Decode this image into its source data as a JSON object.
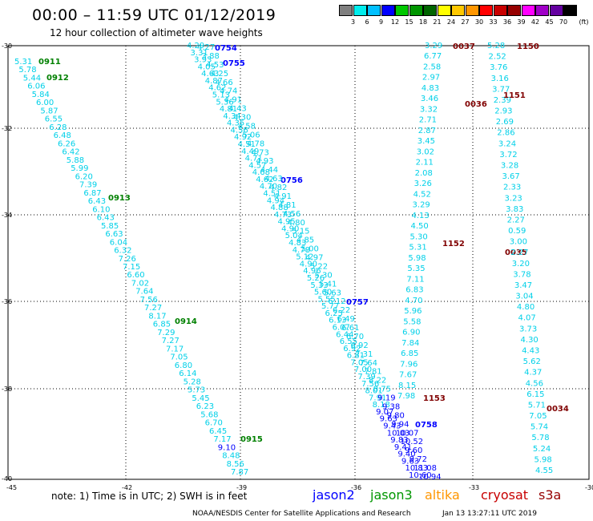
{
  "header": {
    "title": "00:00 – 11:59 UTC 01/12/2019",
    "subtitle": "12 hour collection of altimeter wave heights"
  },
  "colorbar": {
    "unit": "(ft)",
    "colors": [
      "#7f7f7f",
      "#00eded",
      "#00c0ff",
      "#0000ff",
      "#00c800",
      "#009600",
      "#006400",
      "#ffff00",
      "#ffc800",
      "#ff9600",
      "#ff0000",
      "#c80000",
      "#960000",
      "#ff00ff",
      "#a000c8",
      "#6400a0",
      "#000000"
    ],
    "labels": [
      "3",
      "6",
      "9",
      "12",
      "15",
      "18",
      "21",
      "24",
      "27",
      "30",
      "33",
      "36",
      "39",
      "42",
      "45",
      "70"
    ]
  },
  "axes": {
    "x_ticks": [
      "-45",
      "-42",
      "-39",
      "-36",
      "-33",
      "-30"
    ],
    "y_ticks": [
      "-30",
      "-32",
      "-34",
      "-36",
      "-38",
      "-40"
    ]
  },
  "footer": {
    "note": "note:  1) Time is in UTC;  2) SWH is in feet",
    "missions": [
      {
        "name": "jason2",
        "color": "#0000ff"
      },
      {
        "name": "jason3",
        "color": "#009600"
      },
      {
        "name": "altika",
        "color": "#ff9600"
      },
      {
        "name": "cryosat",
        "color": "#c80000"
      },
      {
        "name": "s3a",
        "color": "#960000"
      }
    ],
    "credit": "NOAA/NESDIS Center for Satellite Applications and Research",
    "timestamp": "Jan 13 13:27:11 UTC 2019"
  },
  "colors": {
    "swh_low": "#00d0e8",
    "swh_mid": "#0000ff",
    "swh_gray": "#7f7f7f",
    "jason3_time": "#008000",
    "jason2_time": "#0000ff",
    "cryosat_time": "#800000"
  },
  "tracks": [
    {
      "id": "jason3-0911",
      "mission": "jason3",
      "time_labels": [
        "0911",
        "0912",
        "0913",
        "0914",
        "0915"
      ],
      "values": [
        "5.31",
        "5.78",
        "5.44",
        "6.06",
        "5.84",
        "6.00",
        "5.87",
        "6.55",
        "6.28",
        "6.48",
        "6.26",
        "6.42",
        "5.88",
        "5.99",
        "6.20",
        "7.39",
        "6.87",
        "6.43",
        "6.10",
        "6.43",
        "5.85",
        "6.63",
        "6.04",
        "6.32",
        "7.26",
        "7.15",
        "6.60",
        "7.02",
        "7.64",
        "7.56",
        "7.27",
        "8.17",
        "6.85",
        "7.29",
        "7.27",
        "7.17",
        "7.05",
        "6.80",
        "6.14",
        "5.28",
        "5.73",
        "5.45",
        "6.23",
        "5.68",
        "6.70",
        "6.45",
        "7.17",
        "9.10",
        "8.48",
        "8.56",
        "7.87"
      ]
    },
    {
      "id": "jason2-0754",
      "mission": "jason2",
      "time_labels": [
        "0754",
        "0755",
        "0756",
        "0757",
        "0758"
      ],
      "values": [
        "4.29",
        "3.31",
        "3.93",
        "4.05",
        "4.63",
        "4.87",
        "4.62",
        "5.13",
        "5.36",
        "4.81",
        "4.34",
        "4.35",
        "4.56",
        "4.92",
        "4.51",
        "4.49",
        "4.71",
        "4.57",
        "4.68",
        "4.62",
        "4.70",
        "4.51",
        "4.94",
        "4.88",
        "4.73",
        "4.95",
        "4.90",
        "5.04",
        "4.83",
        "4.78",
        "5.12",
        "4.90",
        "4.96",
        "5.26",
        "5.33",
        "5.60",
        "5.55",
        "5.77",
        "6.25",
        "6.13",
        "6.07",
        "6.44",
        "6.55",
        "6.92",
        "6.81",
        "7.05",
        "7.00",
        "7.39",
        "7.56",
        "8.01",
        "7.91",
        "8.18",
        "9.07",
        "9.63",
        "9.43",
        "10.03",
        "9.83",
        "9.41",
        "9.40",
        "9.63",
        "10.83",
        "10.60"
      ]
    },
    {
      "id": "jason2-0754b",
      "mission": "jason2",
      "time_labels": [],
      "values": [
        "4.27",
        "3.88",
        "4.53",
        "4.25",
        "4.66",
        "4.74",
        "4.91",
        "4.43",
        "4.30",
        "4.58",
        "5.06",
        "4.78",
        "4.73",
        "4.93",
        "4.44",
        "4.63",
        "4.82",
        "4.91",
        "4.81",
        "4.56",
        "4.80",
        "5.15",
        "4.85",
        "5.00",
        "4.97",
        "5.22",
        "5.30",
        "5.41",
        "5.63",
        "6.12",
        "6.22",
        "6.49",
        "6.61",
        "6.70",
        "6.92",
        "7.31",
        "7.64",
        "7.81",
        "8.22",
        "8.75",
        "9.19",
        "9.38",
        "9.80",
        "9.94",
        "10.07",
        "10.52",
        "9.60",
        "9.72",
        "11.08",
        "10.94"
      ]
    },
    {
      "id": "cryosat-0037",
      "mission": "cryosat",
      "time_labels": [
        "0037",
        "0036",
        "0035",
        "0034"
      ],
      "values": [
        "3.29",
        "6.77",
        "2.58",
        "2.97",
        "4.83",
        "3.46",
        "3.32",
        "2.71",
        "2.87",
        "3.45",
        "3.02",
        "2.11",
        "2.08",
        "3.26",
        "4.52",
        "3.29",
        "4.13",
        "4.50",
        "5.30",
        "5.31",
        "5.98",
        "5.35",
        "7.11",
        "6.83",
        "4.70",
        "5.96",
        "5.58",
        "6.90",
        "7.84",
        "6.85",
        "7.96",
        "7.67",
        "8.15",
        "7.98"
      ]
    },
    {
      "id": "cryosat-1150",
      "mission": "cryosat",
      "time_labels": [
        "1150",
        "1151",
        "1152",
        "1153"
      ],
      "values": [
        "5.28",
        "2.52",
        "3.76",
        "3.16",
        "3.77",
        "2.39",
        "2.93",
        "2.69",
        "2.86",
        "3.24",
        "3.72",
        "3.28",
        "3.67",
        "2.33",
        "3.23",
        "3.83",
        "2.27",
        "0.59",
        "3.00",
        "2.27",
        "3.20",
        "3.78",
        "3.47",
        "3.04",
        "4.80",
        "4.07",
        "3.73",
        "4.30",
        "4.43",
        "5.62",
        "4.37",
        "4.56",
        "6.15",
        "5.71",
        "7.05",
        "5.74",
        "5.78",
        "5.24",
        "5.98",
        "4.55"
      ]
    }
  ]
}
